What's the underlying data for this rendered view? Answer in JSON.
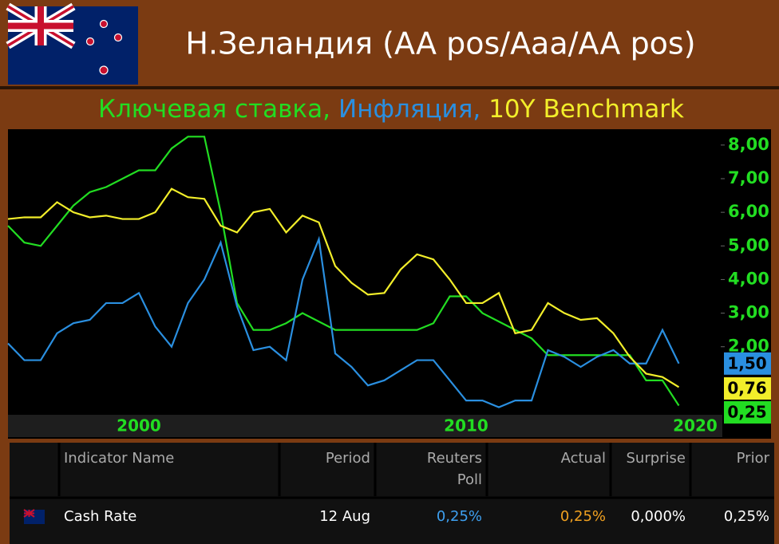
{
  "header": {
    "title": "Н.Зеландия (AA pos/Aaa/AA pos)"
  },
  "chart_data": {
    "type": "line",
    "categories": [
      null,
      null,
      null,
      null,
      null,
      null,
      null,
      null,
      "2000",
      null,
      null,
      null,
      null,
      null,
      null,
      null,
      null,
      null,
      null,
      null,
      null,
      null,
      null,
      null,
      null,
      null,
      null,
      null,
      "2010",
      null,
      null,
      null,
      null,
      null,
      null,
      null,
      null,
      null,
      null,
      null,
      null,
      null,
      "2020"
    ],
    "series": [
      {
        "name": "Ключевая ставка,",
        "color": "#22dd22",
        "current": 0.25,
        "current_label": "0,25",
        "values": [
          5.6,
          5.1,
          5.0,
          5.6,
          6.2,
          6.6,
          6.75,
          7.0,
          7.25,
          7.25,
          7.9,
          8.25,
          8.25,
          6.0,
          3.3,
          2.5,
          2.5,
          2.7,
          3.0,
          2.75,
          2.5,
          2.5,
          2.5,
          2.5,
          2.5,
          2.5,
          2.7,
          3.5,
          3.5,
          3.0,
          2.75,
          2.5,
          2.25,
          1.75,
          1.75,
          1.75,
          1.75,
          1.75,
          1.75,
          1.0,
          1.0,
          0.25,
          null
        ]
      },
      {
        "name": "Инфляция,",
        "color": "#2a8fe0",
        "current": 1.5,
        "current_label": "1,50",
        "values": [
          2.1,
          1.6,
          1.6,
          2.4,
          2.7,
          2.8,
          3.3,
          3.3,
          3.6,
          2.6,
          2.0,
          3.3,
          4.0,
          5.1,
          3.2,
          1.9,
          2.0,
          1.6,
          4.0,
          5.2,
          1.8,
          1.4,
          0.85,
          1.0,
          1.3,
          1.6,
          1.6,
          1.0,
          0.4,
          0.4,
          0.2,
          0.4,
          0.4,
          1.9,
          1.7,
          1.4,
          1.7,
          1.9,
          1.5,
          1.5,
          2.5,
          1.5,
          null
        ]
      },
      {
        "name": "10Y Benchmark",
        "color": "#f2ee2a",
        "current": 0.76,
        "current_label": "0,76",
        "values": [
          5.8,
          5.85,
          5.85,
          6.3,
          6.0,
          5.85,
          5.9,
          5.8,
          5.8,
          6.0,
          6.7,
          6.45,
          6.4,
          5.6,
          5.4,
          6.0,
          6.1,
          5.4,
          5.9,
          5.7,
          4.4,
          3.9,
          3.55,
          3.6,
          4.3,
          4.75,
          4.6,
          4.0,
          3.3,
          3.3,
          3.6,
          2.4,
          2.5,
          3.3,
          3.0,
          2.8,
          2.85,
          2.4,
          1.7,
          1.2,
          1.1,
          0.8,
          null
        ]
      }
    ],
    "ylim": [
      0,
      8.4
    ],
    "yticks": [
      {
        "value": 2,
        "label": "2,00"
      },
      {
        "value": 3,
        "label": "3,00"
      },
      {
        "value": 4,
        "label": "4,00"
      },
      {
        "value": 5,
        "label": "5,00"
      },
      {
        "value": 6,
        "label": "6,00"
      },
      {
        "value": 7,
        "label": "7,00"
      },
      {
        "value": 8,
        "label": "8,00"
      }
    ]
  },
  "table": {
    "header": [
      "Indicator Name",
      "Period",
      "Reuters Poll",
      "Actual",
      "Surprise",
      "Prior"
    ],
    "rows": [
      [
        "Cash Rate",
        "12 Aug",
        "0,25%",
        "0,25%",
        "0,000%",
        "0,25%"
      ]
    ]
  }
}
